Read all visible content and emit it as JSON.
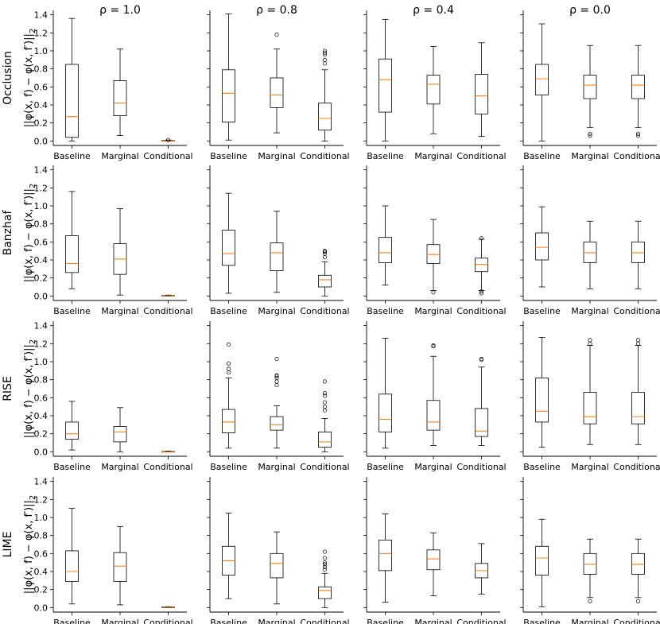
{
  "figure": {
    "ylabel_text": "||φ(x, f) − φ(x, f′)||",
    "ylabel_sub": "2"
  },
  "columns": [
    {
      "label": "ρ = 1.0"
    },
    {
      "label": "ρ = 0.8"
    },
    {
      "label": "ρ = 0.4"
    },
    {
      "label": "ρ = 0.0"
    }
  ],
  "rows": [
    {
      "label": "Occlusion"
    },
    {
      "label": "Banzhaf"
    },
    {
      "label": "RISE"
    },
    {
      "label": "LIME"
    }
  ],
  "chart_data": {
    "type": "boxplot-grid",
    "categories": [
      "Baseline",
      "Marginal",
      "Conditional"
    ],
    "ylim": [
      -0.05,
      1.45
    ],
    "yticks": [
      0.0,
      0.2,
      0.4,
      0.6,
      0.8,
      1.0,
      1.2,
      1.4
    ],
    "ytick_labels": [
      "0.0",
      "0.2",
      "0.4",
      "0.6",
      "0.8",
      "1.0",
      "1.2",
      "1.4"
    ],
    "box_color": "#000000",
    "median_color": "#ff7f0e",
    "panels": [
      [
        [
          {
            "wlo": 0.0,
            "q1": 0.04,
            "med": 0.27,
            "q3": 0.85,
            "whi": 1.36,
            "fl": []
          },
          {
            "wlo": 0.06,
            "q1": 0.28,
            "med": 0.42,
            "q3": 0.67,
            "whi": 1.02,
            "fl": []
          },
          {
            "wlo": 0.0,
            "q1": 0.0,
            "med": 0.0,
            "q3": 0.005,
            "whi": 0.01,
            "fl": [
              0.01
            ]
          }
        ],
        [
          {
            "wlo": 0.01,
            "q1": 0.21,
            "med": 0.53,
            "q3": 0.79,
            "whi": 1.41,
            "fl": []
          },
          {
            "wlo": 0.09,
            "q1": 0.37,
            "med": 0.51,
            "q3": 0.7,
            "whi": 1.02,
            "fl": [
              1.18
            ]
          },
          {
            "wlo": 0.0,
            "q1": 0.12,
            "med": 0.25,
            "q3": 0.42,
            "whi": 0.79,
            "fl": [
              0.86,
              0.9,
              0.96,
              0.98,
              1.0
            ]
          }
        ],
        [
          {
            "wlo": 0.0,
            "q1": 0.32,
            "med": 0.68,
            "q3": 0.91,
            "whi": 1.35,
            "fl": []
          },
          {
            "wlo": 0.08,
            "q1": 0.41,
            "med": 0.63,
            "q3": 0.73,
            "whi": 1.05,
            "fl": []
          },
          {
            "wlo": 0.05,
            "q1": 0.3,
            "med": 0.5,
            "q3": 0.74,
            "whi": 1.09,
            "fl": []
          }
        ],
        [
          {
            "wlo": 0.0,
            "q1": 0.51,
            "med": 0.69,
            "q3": 0.85,
            "whi": 1.3,
            "fl": []
          },
          {
            "wlo": 0.15,
            "q1": 0.47,
            "med": 0.62,
            "q3": 0.73,
            "whi": 1.06,
            "fl": [
              0.06,
              0.08
            ]
          },
          {
            "wlo": 0.15,
            "q1": 0.47,
            "med": 0.62,
            "q3": 0.73,
            "whi": 1.06,
            "fl": [
              0.06,
              0.08
            ]
          }
        ]
      ],
      [
        [
          {
            "wlo": 0.08,
            "q1": 0.26,
            "med": 0.36,
            "q3": 0.67,
            "whi": 1.16,
            "fl": []
          },
          {
            "wlo": 0.01,
            "q1": 0.24,
            "med": 0.41,
            "q3": 0.58,
            "whi": 0.97,
            "fl": []
          },
          {
            "wlo": 0.0,
            "q1": 0.0,
            "med": 0.003,
            "q3": 0.006,
            "whi": 0.01,
            "fl": []
          }
        ],
        [
          {
            "wlo": 0.03,
            "q1": 0.34,
            "med": 0.47,
            "q3": 0.73,
            "whi": 1.14,
            "fl": []
          },
          {
            "wlo": 0.04,
            "q1": 0.28,
            "med": 0.48,
            "q3": 0.59,
            "whi": 0.94,
            "fl": []
          },
          {
            "wlo": 0.0,
            "q1": 0.1,
            "med": 0.18,
            "q3": 0.23,
            "whi": 0.38,
            "fl": [
              0.43,
              0.47,
              0.49,
              0.5
            ]
          }
        ],
        [
          {
            "wlo": 0.12,
            "q1": 0.37,
            "med": 0.48,
            "q3": 0.65,
            "whi": 1.0,
            "fl": []
          },
          {
            "wlo": 0.06,
            "q1": 0.36,
            "med": 0.46,
            "q3": 0.57,
            "whi": 0.85,
            "fl": [
              0.04
            ]
          },
          {
            "wlo": 0.06,
            "q1": 0.27,
            "med": 0.35,
            "q3": 0.42,
            "whi": 0.63,
            "fl": [
              0.03,
              0.05,
              0.64
            ]
          }
        ],
        [
          {
            "wlo": 0.1,
            "q1": 0.4,
            "med": 0.54,
            "q3": 0.7,
            "whi": 0.99,
            "fl": []
          },
          {
            "wlo": 0.08,
            "q1": 0.37,
            "med": 0.48,
            "q3": 0.6,
            "whi": 0.83,
            "fl": []
          },
          {
            "wlo": 0.08,
            "q1": 0.37,
            "med": 0.48,
            "q3": 0.6,
            "whi": 0.83,
            "fl": []
          }
        ]
      ],
      [
        [
          {
            "wlo": 0.02,
            "q1": 0.14,
            "med": 0.2,
            "q3": 0.33,
            "whi": 0.56,
            "fl": []
          },
          {
            "wlo": 0.0,
            "q1": 0.11,
            "med": 0.22,
            "q3": 0.28,
            "whi": 0.49,
            "fl": []
          },
          {
            "wlo": 0.0,
            "q1": 0.0,
            "med": 0.0,
            "q3": 0.004,
            "whi": 0.008,
            "fl": []
          }
        ],
        [
          {
            "wlo": 0.04,
            "q1": 0.21,
            "med": 0.33,
            "q3": 0.47,
            "whi": 0.82,
            "fl": [
              0.88,
              0.92,
              0.98,
              1.19
            ]
          },
          {
            "wlo": 0.04,
            "q1": 0.24,
            "med": 0.3,
            "q3": 0.39,
            "whi": 0.51,
            "fl": [
              0.74,
              0.78,
              0.82,
              0.84,
              0.85,
              1.03
            ]
          },
          {
            "wlo": 0.0,
            "q1": 0.05,
            "med": 0.11,
            "q3": 0.22,
            "whi": 0.37,
            "fl": [
              0.46,
              0.5,
              0.55,
              0.62,
              0.65,
              0.78
            ]
          }
        ],
        [
          {
            "wlo": 0.04,
            "q1": 0.22,
            "med": 0.36,
            "q3": 0.64,
            "whi": 1.26,
            "fl": []
          },
          {
            "wlo": 0.07,
            "q1": 0.24,
            "med": 0.33,
            "q3": 0.57,
            "whi": 1.06,
            "fl": [
              1.17,
              1.18
            ]
          },
          {
            "wlo": 0.07,
            "q1": 0.17,
            "med": 0.23,
            "q3": 0.48,
            "whi": 0.94,
            "fl": [
              1.02,
              1.03
            ]
          }
        ],
        [
          {
            "wlo": 0.05,
            "q1": 0.33,
            "med": 0.45,
            "q3": 0.82,
            "whi": 1.27,
            "fl": []
          },
          {
            "wlo": 0.08,
            "q1": 0.31,
            "med": 0.39,
            "q3": 0.66,
            "whi": 1.18,
            "fl": [
              1.2,
              1.24
            ]
          },
          {
            "wlo": 0.08,
            "q1": 0.31,
            "med": 0.39,
            "q3": 0.66,
            "whi": 1.18,
            "fl": [
              1.2,
              1.24
            ]
          }
        ]
      ],
      [
        [
          {
            "wlo": 0.04,
            "q1": 0.29,
            "med": 0.4,
            "q3": 0.63,
            "whi": 1.1,
            "fl": []
          },
          {
            "wlo": 0.03,
            "q1": 0.29,
            "med": 0.46,
            "q3": 0.61,
            "whi": 0.9,
            "fl": []
          },
          {
            "wlo": 0.0,
            "q1": 0.0,
            "med": 0.004,
            "q3": 0.008,
            "whi": 0.01,
            "fl": []
          }
        ],
        [
          {
            "wlo": 0.1,
            "q1": 0.36,
            "med": 0.52,
            "q3": 0.68,
            "whi": 1.05,
            "fl": []
          },
          {
            "wlo": 0.04,
            "q1": 0.33,
            "med": 0.49,
            "q3": 0.6,
            "whi": 0.84,
            "fl": []
          },
          {
            "wlo": 0.0,
            "q1": 0.1,
            "med": 0.19,
            "q3": 0.23,
            "whi": 0.38,
            "fl": [
              0.42,
              0.45,
              0.48,
              0.5,
              0.55,
              0.62
            ]
          }
        ],
        [
          {
            "wlo": 0.06,
            "q1": 0.41,
            "med": 0.6,
            "q3": 0.75,
            "whi": 1.04,
            "fl": []
          },
          {
            "wlo": 0.13,
            "q1": 0.42,
            "med": 0.54,
            "q3": 0.64,
            "whi": 0.83,
            "fl": []
          },
          {
            "wlo": 0.15,
            "q1": 0.33,
            "med": 0.41,
            "q3": 0.49,
            "whi": 0.71,
            "fl": []
          }
        ],
        [
          {
            "wlo": 0.01,
            "q1": 0.36,
            "med": 0.55,
            "q3": 0.68,
            "whi": 0.98,
            "fl": []
          },
          {
            "wlo": 0.11,
            "q1": 0.37,
            "med": 0.48,
            "q3": 0.6,
            "whi": 0.76,
            "fl": [
              0.07
            ]
          },
          {
            "wlo": 0.11,
            "q1": 0.37,
            "med": 0.48,
            "q3": 0.6,
            "whi": 0.76,
            "fl": [
              0.07
            ]
          }
        ]
      ]
    ]
  }
}
